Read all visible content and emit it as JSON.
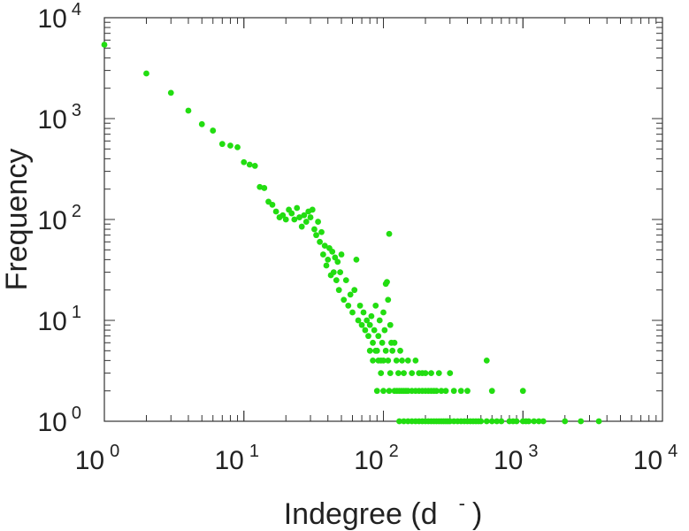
{
  "chart_data": {
    "type": "scatter",
    "title": "",
    "xlabel": "Indegree (d",
    "xlabel_superscript": "-",
    "xlabel_close": ")",
    "ylabel": "Frequency",
    "x_scale": "log",
    "y_scale": "log",
    "xlim": [
      1,
      10000
    ],
    "ylim": [
      1,
      10000
    ],
    "grid": false,
    "legend": "none",
    "marker_color": "#22dd11",
    "x_ticks": [
      {
        "base": "10",
        "exp": "0"
      },
      {
        "base": "10",
        "exp": "1"
      },
      {
        "base": "10",
        "exp": "2"
      },
      {
        "base": "10",
        "exp": "3"
      },
      {
        "base": "10",
        "exp": "4"
      }
    ],
    "y_ticks": [
      {
        "base": "10",
        "exp": "0"
      },
      {
        "base": "10",
        "exp": "1"
      },
      {
        "base": "10",
        "exp": "2"
      },
      {
        "base": "10",
        "exp": "3"
      },
      {
        "base": "10",
        "exp": "4"
      }
    ],
    "points": [
      [
        1,
        5400
      ],
      [
        2,
        2800
      ],
      [
        3,
        1800
      ],
      [
        4,
        1200
      ],
      [
        5,
        880
      ],
      [
        6,
        760
      ],
      [
        7,
        560
      ],
      [
        8,
        540
      ],
      [
        9,
        520
      ],
      [
        10,
        370
      ],
      [
        11,
        350
      ],
      [
        12,
        340
      ],
      [
        13,
        210
      ],
      [
        14,
        205
      ],
      [
        15,
        150
      ],
      [
        16,
        140
      ],
      [
        17,
        120
      ],
      [
        18,
        105
      ],
      [
        19,
        110
      ],
      [
        20,
        100
      ],
      [
        21,
        125
      ],
      [
        22,
        115
      ],
      [
        23,
        100
      ],
      [
        24,
        130
      ],
      [
        25,
        105
      ],
      [
        26,
        85
      ],
      [
        27,
        110
      ],
      [
        28,
        95
      ],
      [
        29,
        120
      ],
      [
        30,
        105
      ],
      [
        31,
        125
      ],
      [
        32,
        80
      ],
      [
        33,
        70
      ],
      [
        34,
        95
      ],
      [
        35,
        60
      ],
      [
        36,
        75
      ],
      [
        37,
        45
      ],
      [
        38,
        55
      ],
      [
        39,
        35
      ],
      [
        40,
        40
      ],
      [
        41,
        52
      ],
      [
        42,
        28
      ],
      [
        43,
        48
      ],
      [
        44,
        30
      ],
      [
        45,
        42
      ],
      [
        46,
        25
      ],
      [
        47,
        38
      ],
      [
        48,
        20
      ],
      [
        49,
        30
      ],
      [
        50,
        45
      ],
      [
        52,
        16
      ],
      [
        54,
        25
      ],
      [
        56,
        14
      ],
      [
        58,
        18
      ],
      [
        60,
        12
      ],
      [
        62,
        20
      ],
      [
        64,
        40
      ],
      [
        66,
        10
      ],
      [
        68,
        14
      ],
      [
        70,
        9
      ],
      [
        72,
        12
      ],
      [
        74,
        8
      ],
      [
        76,
        10
      ],
      [
        78,
        7
      ],
      [
        80,
        9
      ],
      [
        82,
        11
      ],
      [
        84,
        6
      ],
      [
        86,
        8
      ],
      [
        88,
        14
      ],
      [
        90,
        5
      ],
      [
        92,
        7
      ],
      [
        94,
        10
      ],
      [
        96,
        4
      ],
      [
        98,
        6
      ],
      [
        100,
        12
      ],
      [
        102,
        8
      ],
      [
        104,
        23
      ],
      [
        106,
        24
      ],
      [
        108,
        16
      ],
      [
        110,
        72
      ],
      [
        112,
        9
      ],
      [
        114,
        6
      ],
      [
        80,
        5
      ],
      [
        84,
        4
      ],
      [
        88,
        5
      ],
      [
        92,
        4
      ],
      [
        96,
        3
      ],
      [
        100,
        4
      ],
      [
        104,
        5
      ],
      [
        108,
        4
      ],
      [
        112,
        3
      ],
      [
        116,
        5
      ],
      [
        120,
        6
      ],
      [
        124,
        4
      ],
      [
        128,
        3
      ],
      [
        132,
        5
      ],
      [
        136,
        4
      ],
      [
        140,
        3
      ],
      [
        150,
        4
      ],
      [
        160,
        3
      ],
      [
        170,
        4
      ],
      [
        180,
        3
      ],
      [
        190,
        3
      ],
      [
        200,
        3
      ],
      [
        220,
        3
      ],
      [
        250,
        3
      ],
      [
        300,
        3
      ],
      [
        550,
        4
      ],
      [
        90,
        2
      ],
      [
        100,
        2
      ],
      [
        110,
        2
      ],
      [
        120,
        2
      ],
      [
        125,
        2
      ],
      [
        130,
        2
      ],
      [
        135,
        2
      ],
      [
        140,
        2
      ],
      [
        145,
        2
      ],
      [
        150,
        2
      ],
      [
        160,
        2
      ],
      [
        170,
        2
      ],
      [
        180,
        2
      ],
      [
        190,
        2
      ],
      [
        200,
        2
      ],
      [
        210,
        2
      ],
      [
        220,
        2
      ],
      [
        230,
        2
      ],
      [
        240,
        2
      ],
      [
        260,
        2
      ],
      [
        280,
        2
      ],
      [
        320,
        2
      ],
      [
        360,
        2
      ],
      [
        400,
        2
      ],
      [
        600,
        2
      ],
      [
        1000,
        2
      ],
      [
        130,
        1
      ],
      [
        140,
        1
      ],
      [
        150,
        1
      ],
      [
        160,
        1
      ],
      [
        170,
        1
      ],
      [
        180,
        1
      ],
      [
        190,
        1
      ],
      [
        200,
        1
      ],
      [
        210,
        1
      ],
      [
        220,
        1
      ],
      [
        230,
        1
      ],
      [
        240,
        1
      ],
      [
        250,
        1
      ],
      [
        260,
        1
      ],
      [
        270,
        1
      ],
      [
        280,
        1
      ],
      [
        290,
        1
      ],
      [
        300,
        1
      ],
      [
        320,
        1
      ],
      [
        340,
        1
      ],
      [
        360,
        1
      ],
      [
        380,
        1
      ],
      [
        400,
        1
      ],
      [
        420,
        1
      ],
      [
        440,
        1
      ],
      [
        460,
        1
      ],
      [
        480,
        1
      ],
      [
        500,
        1
      ],
      [
        550,
        1
      ],
      [
        600,
        1
      ],
      [
        650,
        1
      ],
      [
        700,
        1
      ],
      [
        800,
        1
      ],
      [
        850,
        1
      ],
      [
        900,
        1
      ],
      [
        1000,
        1
      ],
      [
        1050,
        1
      ],
      [
        1100,
        1
      ],
      [
        1200,
        1
      ],
      [
        1300,
        1
      ],
      [
        1400,
        1
      ],
      [
        2000,
        1
      ],
      [
        2600,
        1
      ],
      [
        3500,
        1
      ]
    ]
  }
}
